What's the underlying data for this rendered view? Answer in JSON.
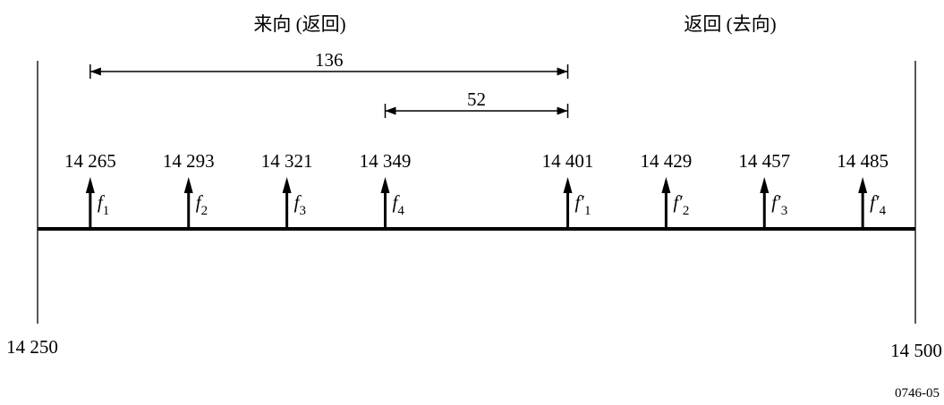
{
  "header": {
    "left": "来向 (返回)",
    "right": "返回 (去向)"
  },
  "axis": {
    "start_label": "14 250",
    "end_label": "14 500",
    "start": 14250,
    "end": 14500
  },
  "spans": [
    {
      "label": "136",
      "from": 14265,
      "to": 14401
    },
    {
      "label": "52",
      "from": 14349,
      "to": 14401
    }
  ],
  "carriers": [
    {
      "freq_label": "14 265",
      "freq": 14265,
      "sym": "f",
      "prime": false,
      "sub": "1"
    },
    {
      "freq_label": "14 293",
      "freq": 14293,
      "sym": "f",
      "prime": false,
      "sub": "2"
    },
    {
      "freq_label": "14 321",
      "freq": 14321,
      "sym": "f",
      "prime": false,
      "sub": "3"
    },
    {
      "freq_label": "14 349",
      "freq": 14349,
      "sym": "f",
      "prime": false,
      "sub": "4"
    },
    {
      "freq_label": "14 401",
      "freq": 14401,
      "sym": "f",
      "prime": true,
      "sub": "1"
    },
    {
      "freq_label": "14 429",
      "freq": 14429,
      "sym": "f",
      "prime": true,
      "sub": "2"
    },
    {
      "freq_label": "14 457",
      "freq": 14457,
      "sym": "f",
      "prime": true,
      "sub": "3"
    },
    {
      "freq_label": "14 485",
      "freq": 14485,
      "sym": "f",
      "prime": true,
      "sub": "4"
    }
  ],
  "figure_ref": "0746-05"
}
